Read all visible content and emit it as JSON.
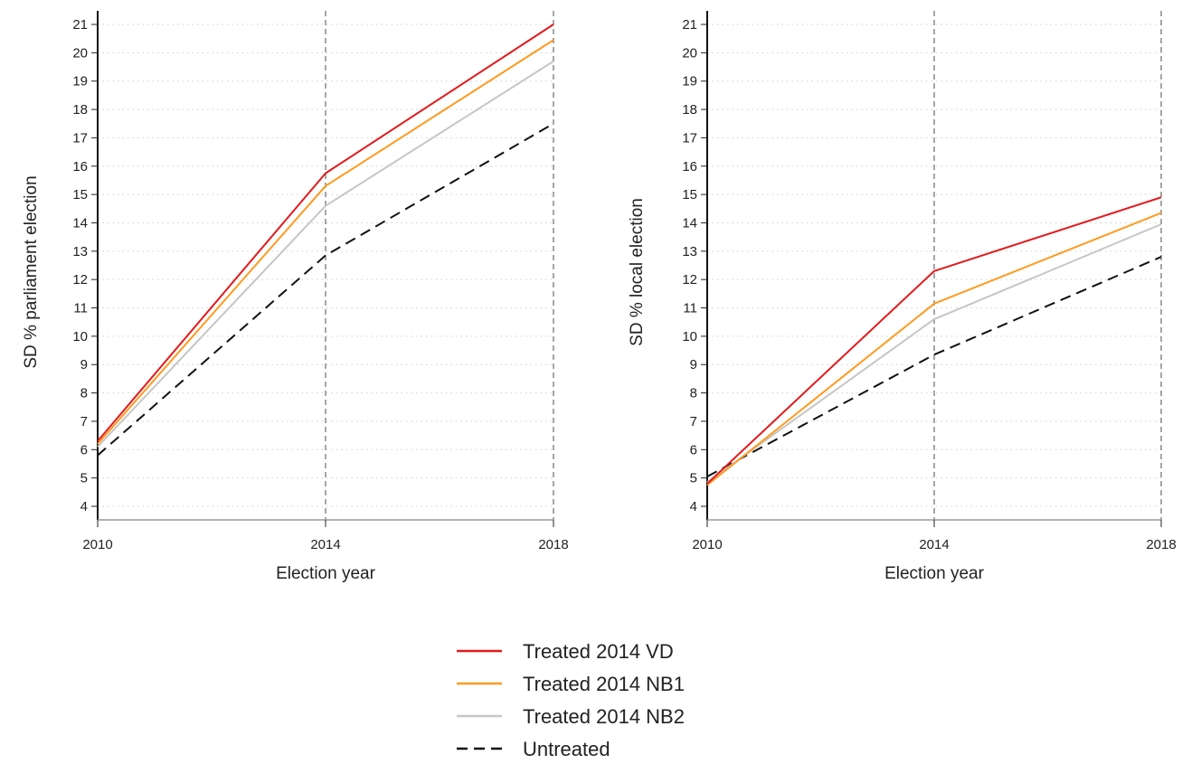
{
  "chart_data": [
    {
      "type": "line",
      "xlabel": "Election year",
      "ylabel": "SD % parliament election",
      "x": [
        2010,
        2014,
        2018
      ],
      "xticks": [
        "2010",
        "2014",
        "2018"
      ],
      "xlim": [
        2010,
        2018
      ],
      "ylim": [
        4,
        21
      ],
      "yticks": [
        "4",
        "5",
        "6",
        "7",
        "8",
        "9",
        "10",
        "11",
        "12",
        "13",
        "14",
        "15",
        "16",
        "17",
        "18",
        "19",
        "20",
        "21"
      ],
      "grid": "horizontal dotted",
      "reference_lines": [
        2014,
        2018
      ],
      "series": [
        {
          "name": "Treated 2014 VD",
          "values": [
            6.3,
            15.75,
            21.0
          ]
        },
        {
          "name": "Treated 2014 NB1",
          "values": [
            6.2,
            15.3,
            20.45
          ]
        },
        {
          "name": "Treated 2014 NB2",
          "values": [
            6.1,
            14.6,
            19.7
          ]
        },
        {
          "name": "Untreated",
          "values": [
            5.8,
            12.85,
            17.5
          ]
        }
      ]
    },
    {
      "type": "line",
      "xlabel": "Election year",
      "ylabel": "SD % local election",
      "x": [
        2010,
        2014,
        2018
      ],
      "xticks": [
        "2010",
        "2014",
        "2018"
      ],
      "xlim": [
        2010,
        2018
      ],
      "ylim": [
        4,
        21
      ],
      "yticks": [
        "4",
        "5",
        "6",
        "7",
        "8",
        "9",
        "10",
        "11",
        "12",
        "13",
        "14",
        "15",
        "16",
        "17",
        "18",
        "19",
        "20",
        "21"
      ],
      "grid": "horizontal dotted",
      "reference_lines": [
        2014,
        2018
      ],
      "series": [
        {
          "name": "Treated 2014 VD",
          "values": [
            4.8,
            12.3,
            14.9
          ]
        },
        {
          "name": "Treated 2014 NB1",
          "values": [
            4.75,
            11.15,
            14.35
          ]
        },
        {
          "name": "Treated 2014 NB2",
          "values": [
            4.85,
            10.6,
            13.95
          ]
        },
        {
          "name": "Untreated",
          "values": [
            5.05,
            9.35,
            12.8
          ]
        }
      ]
    }
  ],
  "legend": {
    "position": "bottom-center",
    "items": [
      {
        "label": "Treated 2014 VD",
        "color": "#e31a1c",
        "dash": "solid"
      },
      {
        "label": "Treated 2014 NB1",
        "color": "#ff9a1f",
        "dash": "solid"
      },
      {
        "label": "Treated 2014 NB2",
        "color": "#c6c6c6",
        "dash": "solid"
      },
      {
        "label": "Untreated",
        "color": "#111111",
        "dash": "dashed"
      }
    ]
  }
}
